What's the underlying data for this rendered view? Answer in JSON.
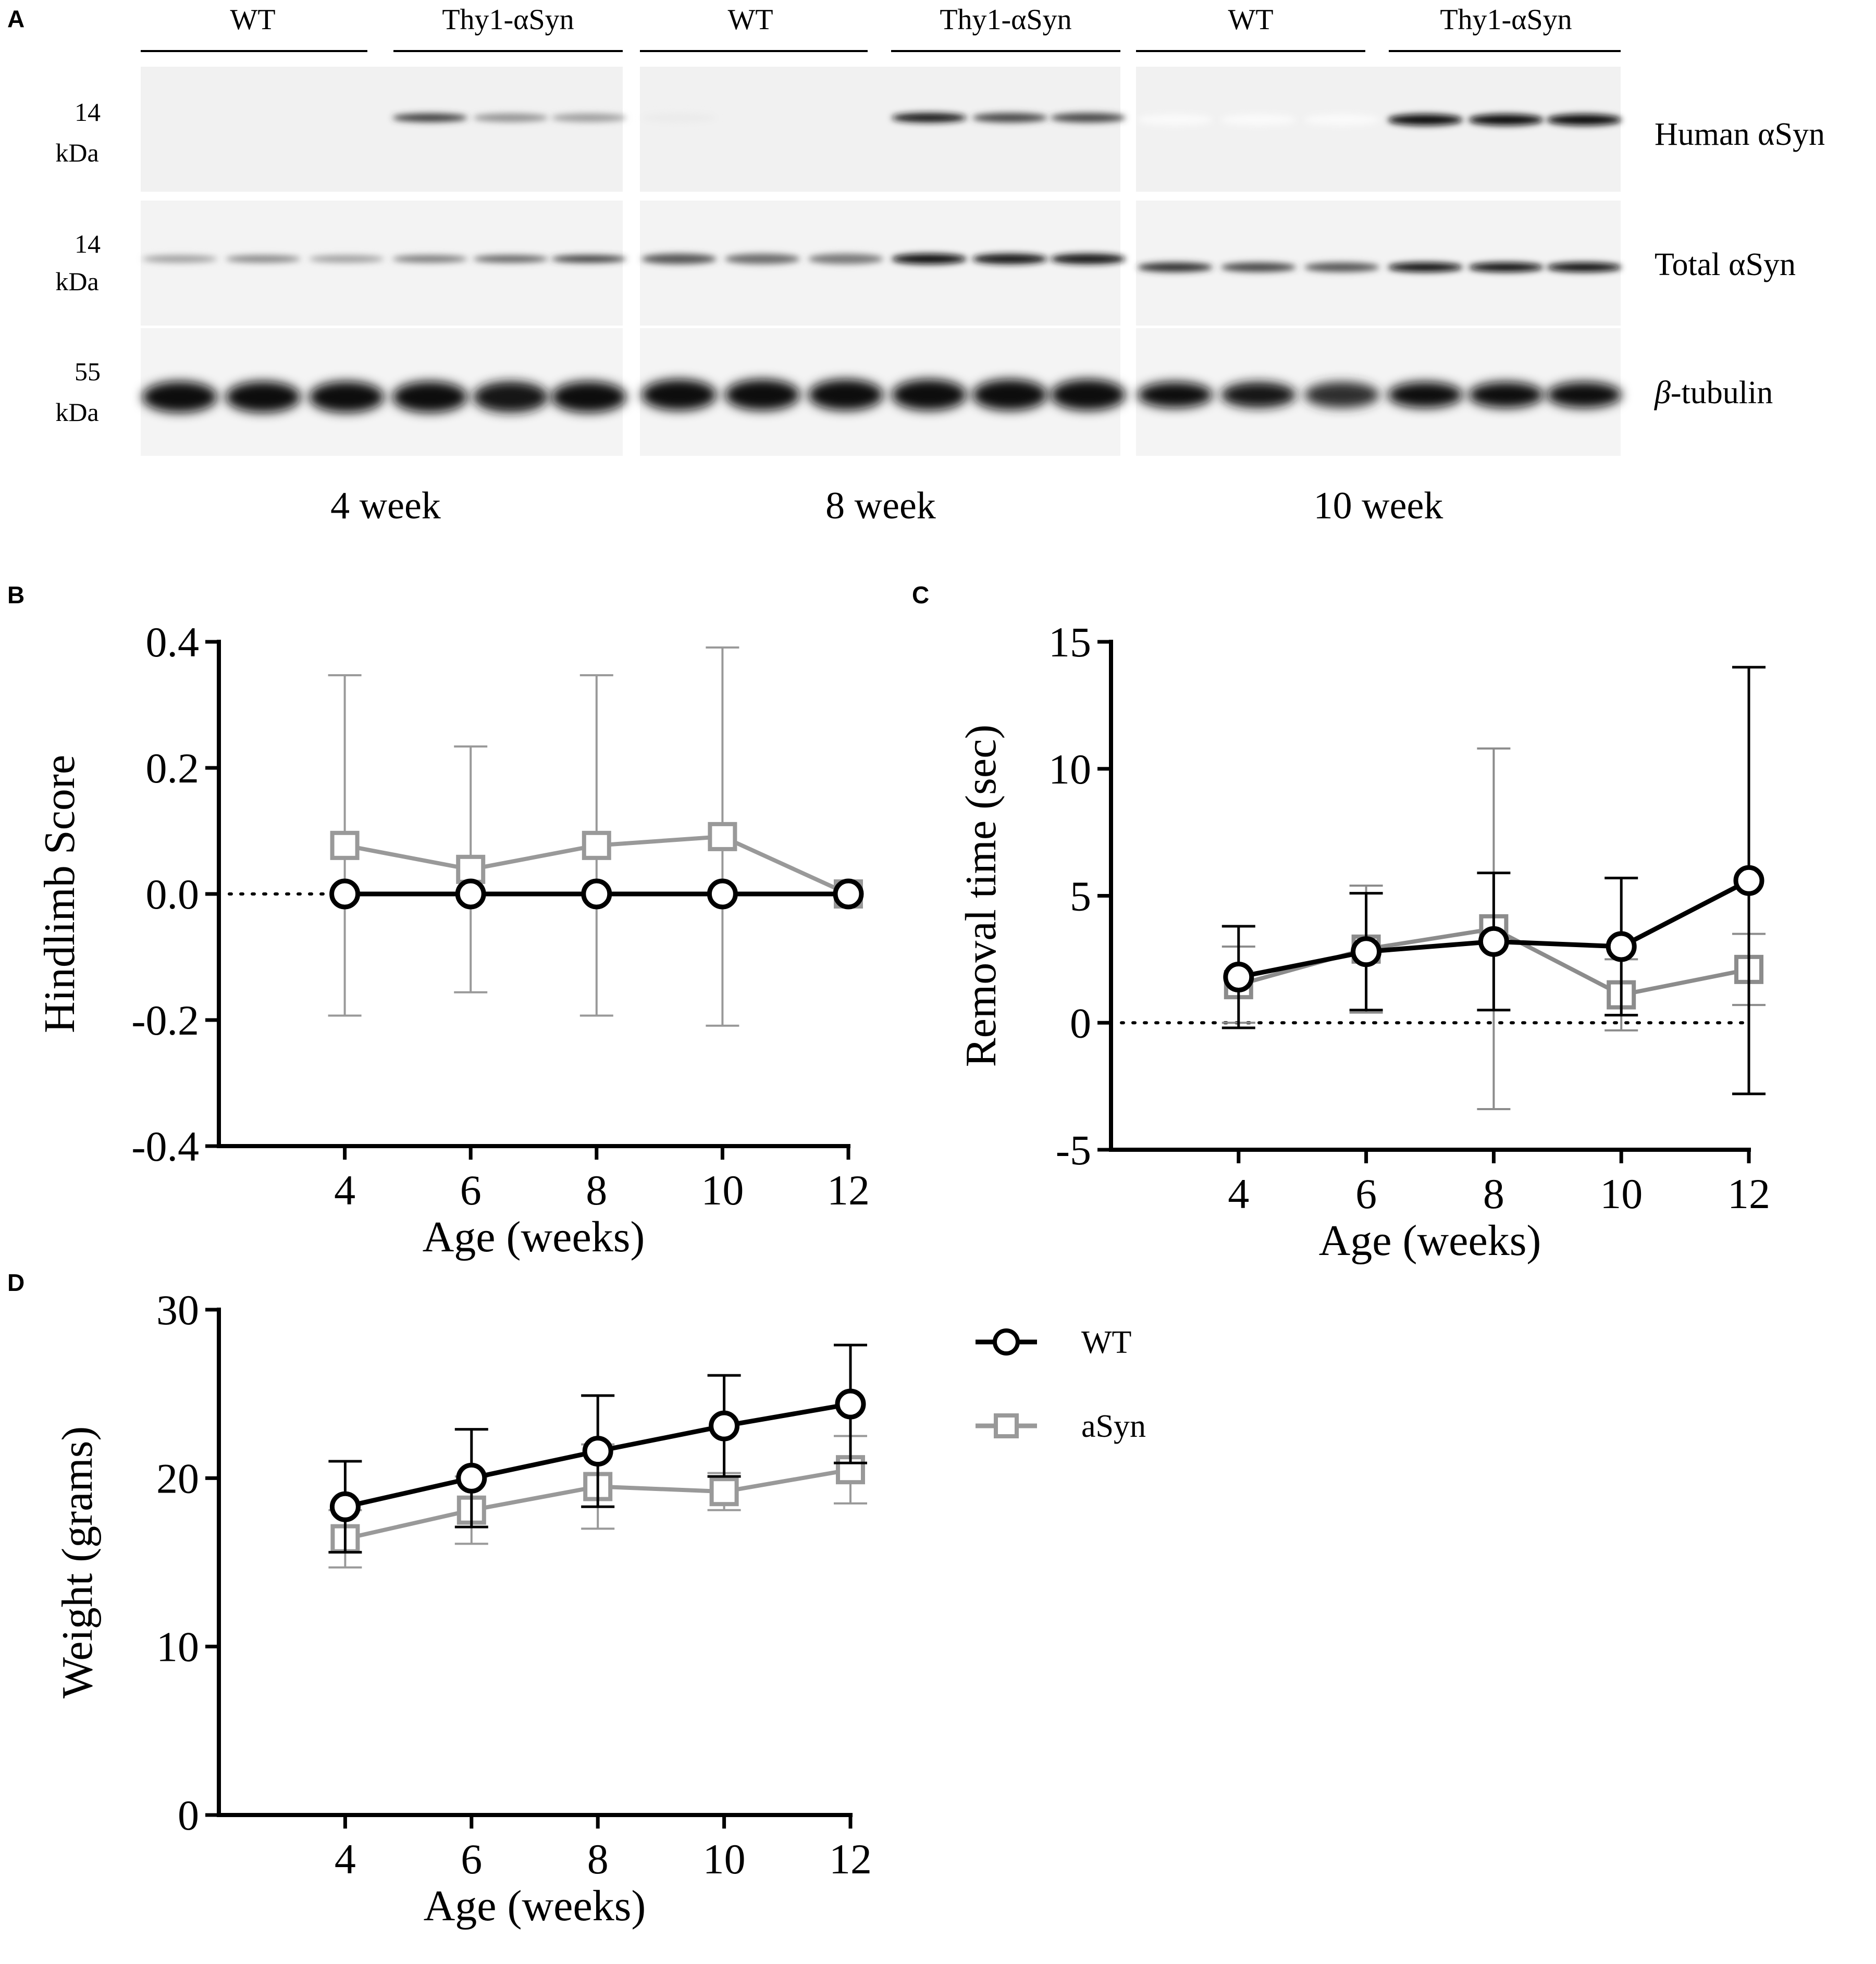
{
  "panel_letters": {
    "a": "A",
    "b": "B",
    "c": "C",
    "d": "D"
  },
  "blot": {
    "groups": [
      {
        "wt": "WT",
        "tg": "Thy1-αSyn",
        "age": "4 week"
      },
      {
        "wt": "WT",
        "tg": "Thy1-αSyn",
        "age": "8 week"
      },
      {
        "wt": "WT",
        "tg": "Thy1-αSyn",
        "age": "10 week"
      }
    ],
    "rows": [
      {
        "name": "Human αSyn",
        "mw_value": "14",
        "mw_unit": "kDa"
      },
      {
        "name": "Total αSyn",
        "mw_value": "14",
        "mw_unit": "kDa"
      },
      {
        "name_prefix": "β",
        "name_suffix": "-tubulin",
        "mw_value": "55",
        "mw_unit": "kDa"
      }
    ]
  },
  "legend": {
    "wt": "WT",
    "asyn": "aSyn"
  },
  "colors": {
    "wt": "#000000",
    "asyn": "#999999",
    "asyn_c": "#8c8c8c"
  },
  "chart_data": [
    {
      "panel": "B",
      "type": "line",
      "ylabel": "Hindlimb Score",
      "xlabel": "Age (weeks)",
      "xlim": [
        2,
        12
      ],
      "ylim": [
        -0.4,
        0.4
      ],
      "yticks": [
        -0.4,
        -0.2,
        0.0,
        0.2,
        0.4
      ],
      "yticklabels": [
        "-0.4",
        "-0.2",
        "0.0",
        "0.2",
        "0.4"
      ],
      "xticks": [
        4,
        6,
        8,
        10,
        12
      ],
      "xticklabels": [
        "4",
        "6",
        "8",
        "10",
        "12"
      ],
      "baseline": 0,
      "x": [
        4,
        6,
        8,
        10,
        12
      ],
      "series": [
        {
          "name": "aSyn",
          "marker": "square",
          "values": [
            0.077,
            0.039,
            0.077,
            0.091,
            0.0
          ],
          "err": [
            0.27,
            0.195,
            0.27,
            0.3,
            0.0
          ]
        },
        {
          "name": "WT",
          "marker": "circle",
          "values": [
            0.0,
            0.0,
            0.0,
            0.0,
            0.0
          ],
          "err": [
            0,
            0,
            0,
            0,
            0
          ]
        }
      ]
    },
    {
      "panel": "C",
      "type": "line",
      "ylabel": "Removal time (sec)",
      "xlabel": "Age (weeks)",
      "xlim": [
        2,
        12
      ],
      "ylim": [
        -5,
        15
      ],
      "yticks": [
        -5,
        0,
        5,
        10,
        15
      ],
      "yticklabels": [
        "-5",
        "0",
        "5",
        "10",
        "15"
      ],
      "xticks": [
        4,
        6,
        8,
        10,
        12
      ],
      "xticklabels": [
        "4",
        "6",
        "8",
        "10",
        "12"
      ],
      "baseline": 0,
      "x": [
        4,
        6,
        8,
        10,
        12
      ],
      "series": [
        {
          "name": "aSyn",
          "marker": "square",
          "values": [
            1.5,
            2.9,
            3.7,
            1.1,
            2.1
          ],
          "err": [
            1.5,
            2.5,
            7.1,
            1.4,
            1.4
          ]
        },
        {
          "name": "WT",
          "marker": "circle",
          "values": [
            1.8,
            2.8,
            3.2,
            3.0,
            5.6
          ],
          "err": [
            2.0,
            2.3,
            2.7,
            2.7,
            8.4
          ]
        }
      ]
    },
    {
      "panel": "D",
      "type": "line",
      "ylabel": "Weight (grams)",
      "xlabel": "Age (weeks)",
      "xlim": [
        2,
        12
      ],
      "ylim": [
        0,
        30
      ],
      "yticks": [
        0,
        10,
        20,
        30
      ],
      "yticklabels": [
        "0",
        "10",
        "20",
        "30"
      ],
      "xticks": [
        4,
        6,
        8,
        10,
        12
      ],
      "xticklabels": [
        "4",
        "6",
        "8",
        "10",
        "12"
      ],
      "x": [
        4,
        6,
        8,
        10,
        12
      ],
      "series": [
        {
          "name": "aSyn",
          "marker": "square",
          "values": [
            16.4,
            18.1,
            19.5,
            19.2,
            20.5
          ],
          "err": [
            1.7,
            2.0,
            2.5,
            1.1,
            2.0
          ]
        },
        {
          "name": "WT",
          "marker": "circle",
          "values": [
            18.3,
            20.0,
            21.6,
            23.1,
            24.4
          ],
          "err": [
            2.7,
            2.9,
            3.3,
            3.0,
            3.5
          ]
        }
      ]
    }
  ]
}
